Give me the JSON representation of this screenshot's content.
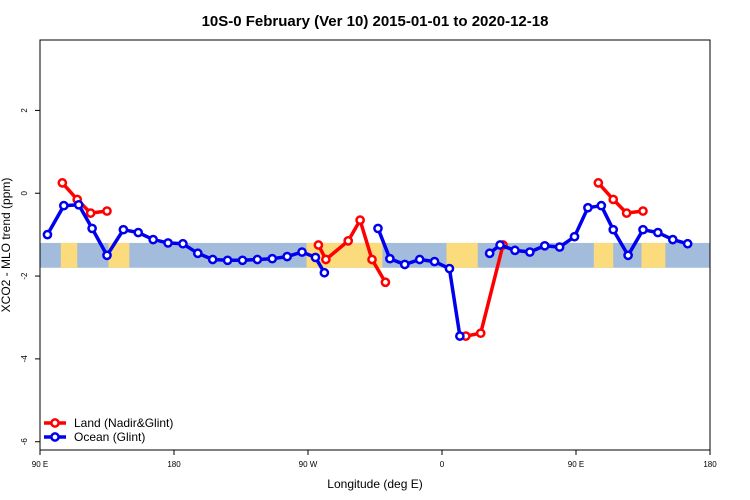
{
  "chart_data": {
    "type": "line",
    "title": "10S-0 February (Ver 10)   2015-01-01 to 2020-12-18",
    "xlabel": "Longitude (deg E)",
    "ylabel": "XCO2 - MLO trend (ppm)",
    "xlim": [
      90,
      540
    ],
    "ylim": [
      -6.2,
      3.7
    ],
    "x_ticks": [
      {
        "value": 90,
        "label": "90 E"
      },
      {
        "value": 180,
        "label": "180"
      },
      {
        "value": 270,
        "label": "90 W"
      },
      {
        "value": 360,
        "label": "0"
      },
      {
        "value": 450,
        "label": "90 E"
      },
      {
        "value": 540,
        "label": "180"
      }
    ],
    "y_ticks": [
      {
        "value": 2,
        "label": "2"
      },
      {
        "value": 0,
        "label": "0"
      },
      {
        "value": -2,
        "label": "-2"
      },
      {
        "value": -4,
        "label": "-4"
      },
      {
        "value": -6,
        "label": "-6"
      }
    ],
    "latitude_band": {
      "y_top": -1.2,
      "y_bottom": -1.8,
      "ocean_color": "#a4bcdc",
      "land_color": "#fcdb7c"
    },
    "land_segments": [
      [
        104,
        115
      ],
      [
        136,
        150
      ],
      [
        269,
        320
      ],
      [
        363,
        384
      ],
      [
        462,
        475
      ],
      [
        494,
        510
      ]
    ],
    "legend": {
      "position": "bottom-left"
    },
    "series": [
      {
        "name": "Land (Nadir&Glint)",
        "color": "#ff0000",
        "segments": [
          [
            [
              105,
              0.25
            ],
            [
              115,
              -0.15
            ],
            [
              124,
              -0.48
            ],
            [
              135,
              -0.43
            ]
          ],
          [
            [
              277,
              -1.25
            ],
            [
              282,
              -1.6
            ],
            [
              297,
              -1.15
            ],
            [
              305,
              -0.65
            ],
            [
              313,
              -1.6
            ],
            [
              322,
              -2.15
            ]
          ],
          [
            [
              376,
              -3.45
            ],
            [
              386,
              -3.38
            ],
            [
              401,
              -1.25
            ]
          ],
          [
            [
              465,
              0.25
            ],
            [
              475,
              -0.15
            ],
            [
              484,
              -0.48
            ],
            [
              495,
              -0.43
            ]
          ]
        ]
      },
      {
        "name": "Ocean (Glint)",
        "color": "#0000ee",
        "segments": [
          [
            [
              95,
              -1.0
            ],
            [
              106,
              -0.3
            ],
            [
              116,
              -0.28
            ],
            [
              125,
              -0.85
            ],
            [
              135,
              -1.5
            ],
            [
              146,
              -0.88
            ],
            [
              156,
              -0.95
            ],
            [
              166,
              -1.12
            ],
            [
              176,
              -1.2
            ],
            [
              186,
              -1.22
            ],
            [
              196,
              -1.45
            ],
            [
              206,
              -1.6
            ],
            [
              216,
              -1.62
            ],
            [
              226,
              -1.62
            ],
            [
              236,
              -1.6
            ],
            [
              246,
              -1.58
            ],
            [
              256,
              -1.53
            ],
            [
              266,
              -1.42
            ],
            [
              275,
              -1.55
            ],
            [
              281,
              -1.92
            ]
          ],
          [
            [
              317,
              -0.85
            ],
            [
              325,
              -1.58
            ],
            [
              335,
              -1.72
            ],
            [
              345,
              -1.6
            ],
            [
              355,
              -1.65
            ],
            [
              365,
              -1.82
            ],
            [
              372,
              -3.45
            ]
          ],
          [
            [
              392,
              -1.45
            ],
            [
              399,
              -1.25
            ],
            [
              409,
              -1.38
            ],
            [
              419,
              -1.42
            ],
            [
              429,
              -1.27
            ],
            [
              439,
              -1.3
            ],
            [
              449,
              -1.05
            ],
            [
              458,
              -0.35
            ],
            [
              467,
              -0.3
            ],
            [
              475,
              -0.88
            ],
            [
              485,
              -1.5
            ],
            [
              495,
              -0.88
            ],
            [
              505,
              -0.95
            ],
            [
              515,
              -1.12
            ],
            [
              525,
              -1.22
            ]
          ]
        ]
      }
    ]
  }
}
